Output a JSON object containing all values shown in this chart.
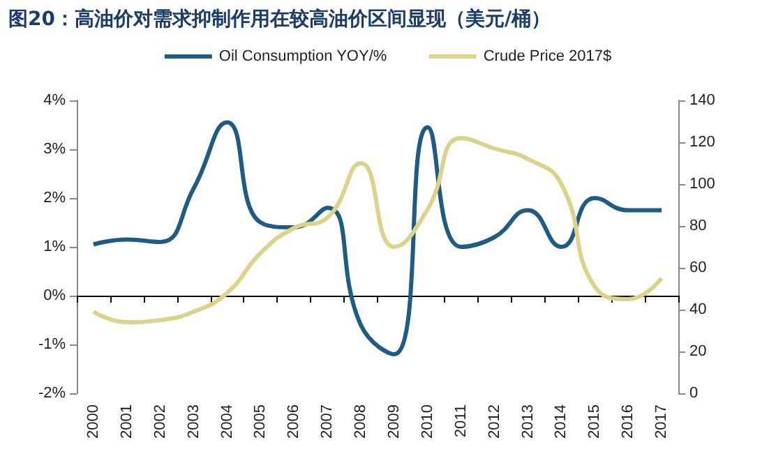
{
  "chart_data": {
    "type": "line",
    "title": "图20：高油价对需求抑制作用在较高油价区间显现（美元/桶）",
    "categories": [
      "2000",
      "2001",
      "2002",
      "2003",
      "2004",
      "2005",
      "2006",
      "2007",
      "2008",
      "2009",
      "2010",
      "2011",
      "2012",
      "2013",
      "2014",
      "2015",
      "2016",
      "2017"
    ],
    "series": [
      {
        "name": "Oil Consumption YOY/%",
        "color": "#1f5c85",
        "values": [
          1.05,
          1.15,
          1.1,
          2.2,
          3.55,
          1.5,
          1.4,
          1.8,
          -0.6,
          -1.2,
          3.45,
          1.0,
          1.2,
          1.75,
          1.0,
          2.0,
          1.75,
          1.75
        ]
      },
      {
        "name": "Crude Price 2017$",
        "color": "#dcd38a",
        "axis": "y2",
        "values": [
          39,
          34,
          35,
          39,
          48,
          67,
          79,
          84,
          110,
          70,
          88,
          122,
          117,
          112,
          100,
          51,
          45,
          55
        ]
      }
    ],
    "ylim": [
      -2,
      4
    ],
    "yticks": [
      {
        "value": -2,
        "label": "-2%"
      },
      {
        "value": -1,
        "label": "-1%"
      },
      {
        "value": 0,
        "label": "0%"
      },
      {
        "value": 1,
        "label": "1%"
      },
      {
        "value": 2,
        "label": "2%"
      },
      {
        "value": 3,
        "label": "3%"
      },
      {
        "value": 4,
        "label": "4%"
      }
    ],
    "y2lim": [
      0,
      140
    ],
    "y2ticks": [
      0,
      20,
      40,
      60,
      80,
      100,
      120,
      140
    ],
    "legend": "top",
    "marker": "none",
    "line_style": "solid"
  }
}
